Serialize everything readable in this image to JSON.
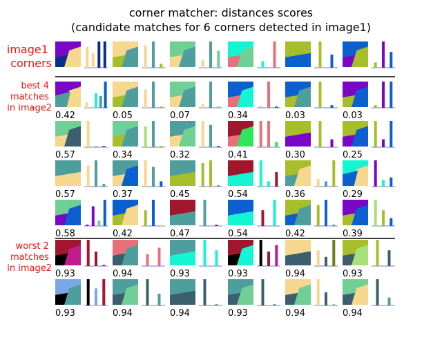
{
  "chart_data": {
    "type": "image-grid",
    "title_line1": "corner matcher: distances scores",
    "title_line2": "(candidate matches for 6 corners detected in image1)",
    "row_labels": {
      "reference": [
        "image1",
        "corners"
      ],
      "best": [
        "best 4",
        "matches",
        "in image2"
      ],
      "worst": [
        "worst 2",
        "matches",
        "in image2"
      ]
    },
    "palette": {
      "navy": "#0b2d8c",
      "purple": "#7a07c8",
      "wheat": "#f5d88e",
      "olive": "#a8bd2a",
      "teal": "#4e9e9d",
      "mint": "#6fcf95",
      "salmon": "#e8707a",
      "cyan": "#16f5d3",
      "blue": "#0c5fcf",
      "crimson": "#a1162f",
      "slate": "#3b5f6e",
      "black": "#000000",
      "sky": "#7aa7e8",
      "green": "#2ee65c",
      "darkolive": "#6f7f15",
      "ltgreen": "#a8e07a",
      "magenta": "#c01a8c",
      "pink": "#f2a0a0"
    },
    "rows": [
      {
        "group": "reference",
        "cells": [
          {
            "score": "",
            "regions": [
              "navy",
              "purple",
              "wheat"
            ],
            "bars": [
              [
                "wheat",
                0.8
              ],
              [
                "wheat",
                0.55
              ],
              [
                "navy",
                1.0
              ],
              [
                "navy",
                1.0
              ]
            ]
          },
          {
            "score": "",
            "regions": [
              "olive",
              "wheat",
              "teal"
            ],
            "bars": [
              [
                "wheat",
                0.85
              ],
              [
                "teal",
                1.0
              ],
              [
                "olive",
                0.15
              ]
            ]
          },
          {
            "score": "",
            "regions": [
              "wheat",
              "mint",
              "teal"
            ],
            "bars": [
              [
                "wheat",
                0.3
              ],
              [
                "teal",
                1.0
              ],
              [
                "mint",
                0.65
              ]
            ]
          },
          {
            "score": "",
            "regions": [
              "salmon",
              "cyan",
              "mint"
            ],
            "bars": [
              [
                "cyan",
                0.25
              ],
              [
                "salmon",
                1.0
              ]
            ]
          },
          {
            "score": "",
            "regions": [
              "blue",
              "olive"
            ],
            "bars": [
              [
                "olive",
                1.0
              ],
              [
                "blue",
                0.5
              ]
            ]
          },
          {
            "score": "",
            "regions": [
              "purple",
              "blue",
              "olive"
            ],
            "bars": [
              [
                "olive",
                0.2
              ],
              [
                "purple",
                1.0
              ],
              [
                "blue",
                0.6
              ]
            ]
          }
        ]
      },
      {
        "group": "best",
        "cells": [
          {
            "score": "0.42",
            "regions": [
              "blue",
              "purple",
              "wheat",
              "teal"
            ],
            "bars": [
              [
                "wheat",
                0.2
              ],
              [
                "wheat",
                0.05
              ],
              [
                "cyan",
                0.55
              ],
              [
                "teal",
                0.45
              ],
              [
                "blue",
                1.0
              ]
            ]
          },
          {
            "score": "0.05",
            "regions": [
              "olive",
              "wheat",
              "teal"
            ],
            "bars": [
              [
                "wheat",
                0.7
              ],
              [
                "teal",
                1.0
              ],
              [
                "olive",
                0.05
              ]
            ]
          },
          {
            "score": "0.07",
            "regions": [
              "wheat",
              "mint",
              "teal"
            ],
            "bars": [
              [
                "wheat",
                0.15
              ],
              [
                "teal",
                1.0
              ],
              [
                "mint",
                0.05
              ]
            ]
          },
          {
            "score": "0.34",
            "regions": [
              "salmon",
              "blue",
              "cyan"
            ],
            "bars": [
              [
                "pink",
                0.05
              ],
              [
                "salmon",
                1.0
              ],
              [
                "blue",
                0.05
              ]
            ]
          },
          {
            "score": "0.03",
            "regions": [
              "olive",
              "blue",
              "teal"
            ],
            "bars": [
              [
                "olive",
                1.0
              ],
              [
                "blue",
                0.1
              ]
            ]
          },
          {
            "score": "0.03",
            "regions": [
              "olive",
              "purple",
              "blue"
            ],
            "bars": [
              [
                "olive",
                0.1
              ],
              [
                "purple",
                1.0
              ],
              [
                "blue",
                1.0
              ]
            ]
          }
        ]
      },
      {
        "group": "best",
        "cells": [
          {
            "score": "0.57",
            "regions": [
              "wheat",
              "mint",
              "slate"
            ],
            "bars": [
              [
                "wheat",
                1.0
              ],
              [
                "mint",
                0.05
              ],
              [
                "slate",
                0.05
              ]
            ]
          },
          {
            "score": "0.34",
            "regions": [
              "olive",
              "mint",
              "teal"
            ],
            "bars": [
              [
                "ltgreen",
                0.8
              ],
              [
                "teal",
                1.0
              ],
              [
                "olive",
                0.05
              ]
            ]
          },
          {
            "score": "0.32",
            "regions": [
              "wheat",
              "teal",
              "mint"
            ],
            "bars": [
              [
                "wheat",
                1.0
              ],
              [
                "teal",
                0.85
              ],
              [
                "slate",
                0.05
              ]
            ]
          },
          {
            "score": "0.41",
            "regions": [
              "salmon",
              "crimson",
              "green"
            ],
            "bars": [
              [
                "salmon",
                1.0
              ],
              [
                "salmon",
                1.0
              ],
              [
                "green",
                0.2
              ]
            ]
          },
          {
            "score": "0.30",
            "regions": [
              "purple",
              "olive"
            ],
            "bars": [
              [
                "olive",
                1.0
              ],
              [
                "purple",
                0.3
              ]
            ]
          },
          {
            "score": "0.25",
            "regions": [
              "purple",
              "olive",
              "blue"
            ],
            "bars": [
              [
                "olive",
                1.0
              ],
              [
                "purple",
                0.3
              ],
              [
                "blue",
                1.0
              ]
            ]
          }
        ]
      },
      {
        "group": "best",
        "cells": [
          {
            "score": "0.57",
            "regions": [
              "wheat",
              "teal"
            ],
            "bars": [
              [
                "wheat",
                0.8
              ],
              [
                "teal",
                1.0
              ],
              [
                "teal",
                0.1
              ]
            ]
          },
          {
            "score": "0.37",
            "regions": [
              "wheat",
              "teal",
              "blue"
            ],
            "bars": [
              [
                "wheat",
                1.0
              ],
              [
                "teal",
                0.75
              ],
              [
                "blue",
                0.2
              ]
            ]
          },
          {
            "score": "0.45",
            "regions": [
              "olive",
              "teal"
            ],
            "bars": [
              [
                "olive",
                0.9
              ],
              [
                "olive",
                1.0
              ],
              [
                "teal",
                0.05
              ]
            ]
          },
          {
            "score": "0.54",
            "regions": [
              "cyan",
              "crimson"
            ],
            "bars": [
              [
                "cyan",
                1.0
              ],
              [
                "cyan",
                0.2
              ],
              [
                "crimson",
                0.55
              ]
            ]
          },
          {
            "score": "0.36",
            "regions": [
              "teal",
              "olive",
              "wheat"
            ],
            "bars": [
              [
                "wheat",
                0.3
              ],
              [
                "teal",
                0.2
              ],
              [
                "olive",
                1.0
              ]
            ]
          },
          {
            "score": "0.29",
            "regions": [
              "purple",
              "cyan",
              "wheat",
              "blue"
            ],
            "bars": [
              [
                "purple",
                1.0
              ],
              [
                "cyan",
                0.25
              ],
              [
                "blue",
                0.35
              ]
            ]
          }
        ]
      },
      {
        "group": "best",
        "cells": [
          {
            "score": "0.58",
            "regions": [
              "purple",
              "mint",
              "blue"
            ],
            "bars": [
              [
                "purple",
                0.05
              ],
              [
                "purple",
                0.75
              ],
              [
                "mint",
                0.2
              ],
              [
                "blue",
                1.0
              ]
            ]
          },
          {
            "score": "0.42",
            "regions": [
              "olive",
              "blue",
              "wheat"
            ],
            "bars": [
              [
                "olive",
                0.6
              ],
              [
                "blue",
                1.0
              ],
              [
                "wheat",
                0.05
              ]
            ]
          },
          {
            "score": "0.47",
            "regions": [
              "teal",
              "crimson"
            ],
            "bars": [
              [
                "teal",
                1.0
              ],
              [
                "crimson",
                0.05
              ]
            ]
          },
          {
            "score": "0.54",
            "regions": [
              "cyan",
              "blue"
            ],
            "bars": [
              [
                "crimson",
                0.6
              ],
              [
                "cyan",
                1.0
              ]
            ]
          },
          {
            "score": "0.42",
            "regions": [
              "blue",
              "olive",
              "teal"
            ],
            "bars": [
              [
                "olive",
                0.8
              ],
              [
                "blue",
                1.0
              ],
              [
                "teal",
                0.05
              ]
            ]
          },
          {
            "score": "0.39",
            "regions": [
              "olive",
              "purple",
              "blue"
            ],
            "bars": [
              [
                "ltgreen",
                1.0
              ],
              [
                "olive",
                0.6
              ],
              [
                "blue",
                0.3
              ]
            ]
          }
        ]
      },
      {
        "group": "worst",
        "cells": [
          {
            "score": "0.93",
            "regions": [
              "black",
              "crimson",
              "magenta"
            ],
            "bars": [
              [
                "crimson",
                1.0
              ],
              [
                "crimson",
                0.55
              ],
              [
                "magenta",
                0.05
              ]
            ]
          },
          {
            "score": "0.94",
            "regions": [
              "slate",
              "salmon",
              "teal"
            ],
            "bars": [
              [
                "salmon",
                0.45
              ],
              [
                "salmon",
                0.7
              ]
            ]
          },
          {
            "score": "0.93",
            "regions": [
              "cyan",
              "teal"
            ],
            "bars": [
              [
                "cyan",
                1.0
              ],
              [
                "cyan",
                0.6
              ]
            ]
          },
          {
            "score": "0.93",
            "regions": [
              "black",
              "crimson",
              "cyan"
            ],
            "bars": [
              [
                "black",
                1.0
              ],
              [
                "crimson",
                0.55
              ],
              [
                "magenta",
                0.8
              ]
            ]
          },
          {
            "score": "0.94",
            "regions": [
              "slate",
              "wheat"
            ],
            "bars": [
              [
                "wheat",
                0.6
              ],
              [
                "slate",
                0.35
              ],
              [
                "darkolive",
                1.0
              ]
            ]
          },
          {
            "score": "0.93",
            "regions": [
              "slate",
              "olive",
              "ltgreen"
            ],
            "bars": [
              [
                "olive",
                1.0
              ],
              [
                "slate",
                0.6
              ]
            ]
          }
        ]
      },
      {
        "group": "worst",
        "cells": [
          {
            "score": "0.93",
            "regions": [
              "black",
              "sky",
              "teal"
            ],
            "bars": [
              [
                "black",
                1.0
              ],
              [
                "sky",
                0.65
              ],
              [
                "crimson",
                1.0
              ]
            ]
          },
          {
            "score": "0.94",
            "regions": [
              "slate",
              "teal",
              "mint"
            ],
            "bars": [
              [
                "slate",
                1.0
              ],
              [
                "teal",
                0.45
              ]
            ]
          },
          {
            "score": "0.94",
            "regions": [
              "slate",
              "teal"
            ],
            "bars": [
              [
                "slate",
                1.0
              ],
              [
                "teal",
                0.05
              ]
            ]
          },
          {
            "score": "0.93",
            "regions": [
              "slate",
              "teal",
              "mint"
            ],
            "bars": [
              [
                "slate",
                1.0
              ],
              [
                "teal",
                0.05
              ]
            ]
          },
          {
            "score": "0.94",
            "regions": [
              "slate",
              "wheat",
              "mint"
            ],
            "bars": [
              [
                "wheat",
                1.0
              ],
              [
                "slate",
                0.5
              ],
              [
                "mint",
                0.05
              ]
            ]
          },
          {
            "score": "0.94",
            "regions": [
              "slate",
              "mint",
              "wheat"
            ],
            "bars": [
              [
                "slate",
                1.0
              ],
              [
                "teal",
                0.3
              ]
            ]
          }
        ]
      }
    ]
  }
}
